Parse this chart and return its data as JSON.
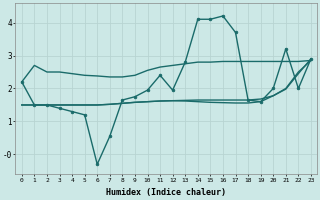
{
  "title": "",
  "xlabel": "Humidex (Indice chaleur)",
  "ylabel": "",
  "background_color": "#cce8e6",
  "line_color": "#1a6b6a",
  "grid_color": "#b8d4d2",
  "x_min": -0.5,
  "x_max": 23.5,
  "y_min": -0.6,
  "y_max": 4.6,
  "lines": [
    {
      "x": [
        0,
        1,
        2,
        3,
        4,
        5,
        6,
        7,
        8,
        9,
        10,
        11,
        12,
        13,
        14,
        15,
        16,
        17,
        18,
        19,
        20,
        21,
        22,
        23
      ],
      "y": [
        2.2,
        2.7,
        2.5,
        2.5,
        2.45,
        2.4,
        2.38,
        2.35,
        2.35,
        2.4,
        2.55,
        2.65,
        2.7,
        2.75,
        2.8,
        2.8,
        2.82,
        2.82,
        2.82,
        2.82,
        2.82,
        2.82,
        2.82,
        2.85
      ],
      "markers": false,
      "linewidth": 1.0
    },
    {
      "x": [
        0,
        1,
        2,
        3,
        4,
        5,
        6,
        7,
        8,
        9,
        10,
        11,
        12,
        13,
        14,
        15,
        16,
        17,
        18,
        19,
        20,
        21,
        22,
        23
      ],
      "y": [
        2.2,
        1.5,
        1.5,
        1.4,
        1.3,
        1.2,
        -0.3,
        0.55,
        1.65,
        1.75,
        1.95,
        2.4,
        1.95,
        2.8,
        4.1,
        4.1,
        4.2,
        3.7,
        1.65,
        1.6,
        2.0,
        3.2,
        2.0,
        2.9
      ],
      "markers": true,
      "linewidth": 1.0
    },
    {
      "x": [
        0,
        1,
        2,
        3,
        4,
        5,
        6,
        7,
        8,
        9,
        10,
        11,
        12,
        13,
        14,
        15,
        16,
        17,
        18,
        19,
        20,
        21,
        22,
        23
      ],
      "y": [
        1.5,
        1.5,
        1.5,
        1.5,
        1.5,
        1.5,
        1.5,
        1.52,
        1.55,
        1.58,
        1.6,
        1.62,
        1.63,
        1.64,
        1.65,
        1.65,
        1.65,
        1.65,
        1.65,
        1.68,
        1.78,
        2.0,
        2.5,
        2.85
      ],
      "markers": false,
      "linewidth": 1.0
    },
    {
      "x": [
        0,
        1,
        2,
        3,
        4,
        5,
        6,
        7,
        8,
        9,
        10,
        11,
        12,
        13,
        14,
        15,
        16,
        17,
        18,
        19,
        20,
        21,
        22,
        23
      ],
      "y": [
        1.5,
        1.5,
        1.5,
        1.5,
        1.5,
        1.5,
        1.5,
        1.52,
        1.55,
        1.58,
        1.6,
        1.62,
        1.63,
        1.62,
        1.6,
        1.58,
        1.57,
        1.56,
        1.56,
        1.6,
        1.78,
        1.98,
        2.45,
        2.9
      ],
      "markers": false,
      "linewidth": 1.0
    }
  ]
}
